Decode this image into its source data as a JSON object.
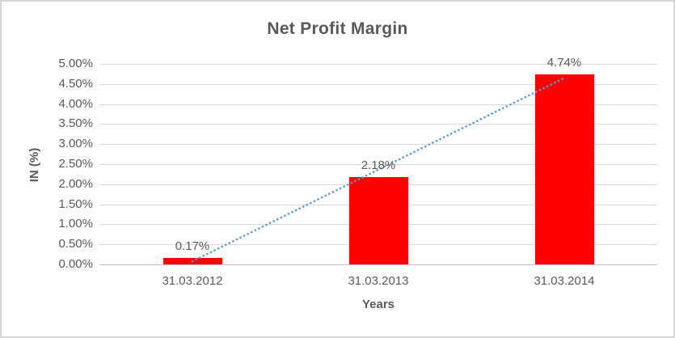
{
  "chart_data": {
    "type": "bar",
    "title": "Net Profit Margin",
    "xlabel": "Years",
    "ylabel": "IN (%)",
    "categories": [
      "31.03.2012",
      "31.03.2013",
      "31.03.2014"
    ],
    "values": [
      0.17,
      2.18,
      4.74
    ],
    "data_labels": [
      "0.17%",
      "2.18%",
      "4.74%"
    ],
    "ylim": [
      0,
      5
    ],
    "ytick_step": 0.5,
    "ytick_labels_top_to_bottom": [
      "5.00%",
      "4.50%",
      "4.00%",
      "3.50%",
      "3.00%",
      "2.50%",
      "2.00%",
      "1.50%",
      "1.00%",
      "0.50%",
      "0.00%"
    ],
    "grid": true,
    "legend": "none",
    "trendline": {
      "type": "linear",
      "style": "dotted"
    },
    "colors": {
      "bar": "#FF0000",
      "trendline": "#5B9BD5",
      "gridline": "#D9D9D9",
      "axis_line": "#BFBFBF",
      "text": "#595959",
      "border": "#D6D6D6",
      "background": "#FFFFFF"
    }
  }
}
